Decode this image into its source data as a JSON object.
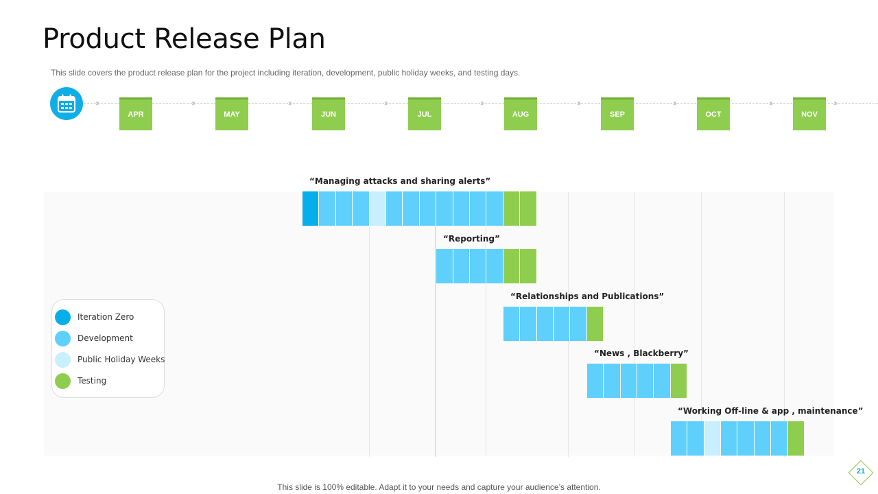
{
  "title": "Product Release Plan",
  "subtitle": "This slide covers the product release plan for the project including iteration, development, public holiday weeks, and testing days.",
  "footer": "This slide is 100% editable. Adapt it to your needs and capture your audience’s attention.",
  "page_number": "21",
  "timeline": {
    "icon": "calendar-icon",
    "months": [
      "APR",
      "MAY",
      "JUN",
      "JUL",
      "AUG",
      "SEP",
      "OCT",
      "NOV"
    ]
  },
  "colors": {
    "iteration_zero": "#06aeea",
    "development": "#5fd0fb",
    "public_holiday_weeks": "#c8effd",
    "testing": "#8fcd4f"
  },
  "legend": [
    {
      "key": "iteration_zero",
      "label": "Iteration Zero"
    },
    {
      "key": "development",
      "label": "Development"
    },
    {
      "key": "public_holiday_weeks",
      "label": "Public Holiday Weeks"
    },
    {
      "key": "testing",
      "label": "Testing"
    }
  ],
  "tasks": [
    {
      "label": "“Managing  attacks and sharing alerts”",
      "start_week": 0,
      "weeks": [
        "iteration_zero",
        "development",
        "development",
        "development",
        "public_holiday_weeks",
        "development",
        "development",
        "development",
        "development",
        "development",
        "development",
        "development",
        "testing",
        "testing"
      ]
    },
    {
      "label": "“Reporting”",
      "start_week": 8,
      "weeks": [
        "development",
        "development",
        "development",
        "development",
        "testing",
        "testing"
      ]
    },
    {
      "label": "“Relationships  and Publications”",
      "start_week": 12,
      "weeks": [
        "development",
        "development",
        "development",
        "development",
        "development",
        "testing"
      ]
    },
    {
      "label": "“News , Blackberry”",
      "start_week": 17,
      "weeks": [
        "development",
        "development",
        "development",
        "development",
        "development",
        "testing"
      ]
    },
    {
      "label": "“Working Off-line & app  , maintenance”",
      "start_week": 22,
      "weeks": [
        "development",
        "development",
        "public_holiday_weeks",
        "development",
        "development",
        "development",
        "development",
        "testing"
      ]
    }
  ]
}
